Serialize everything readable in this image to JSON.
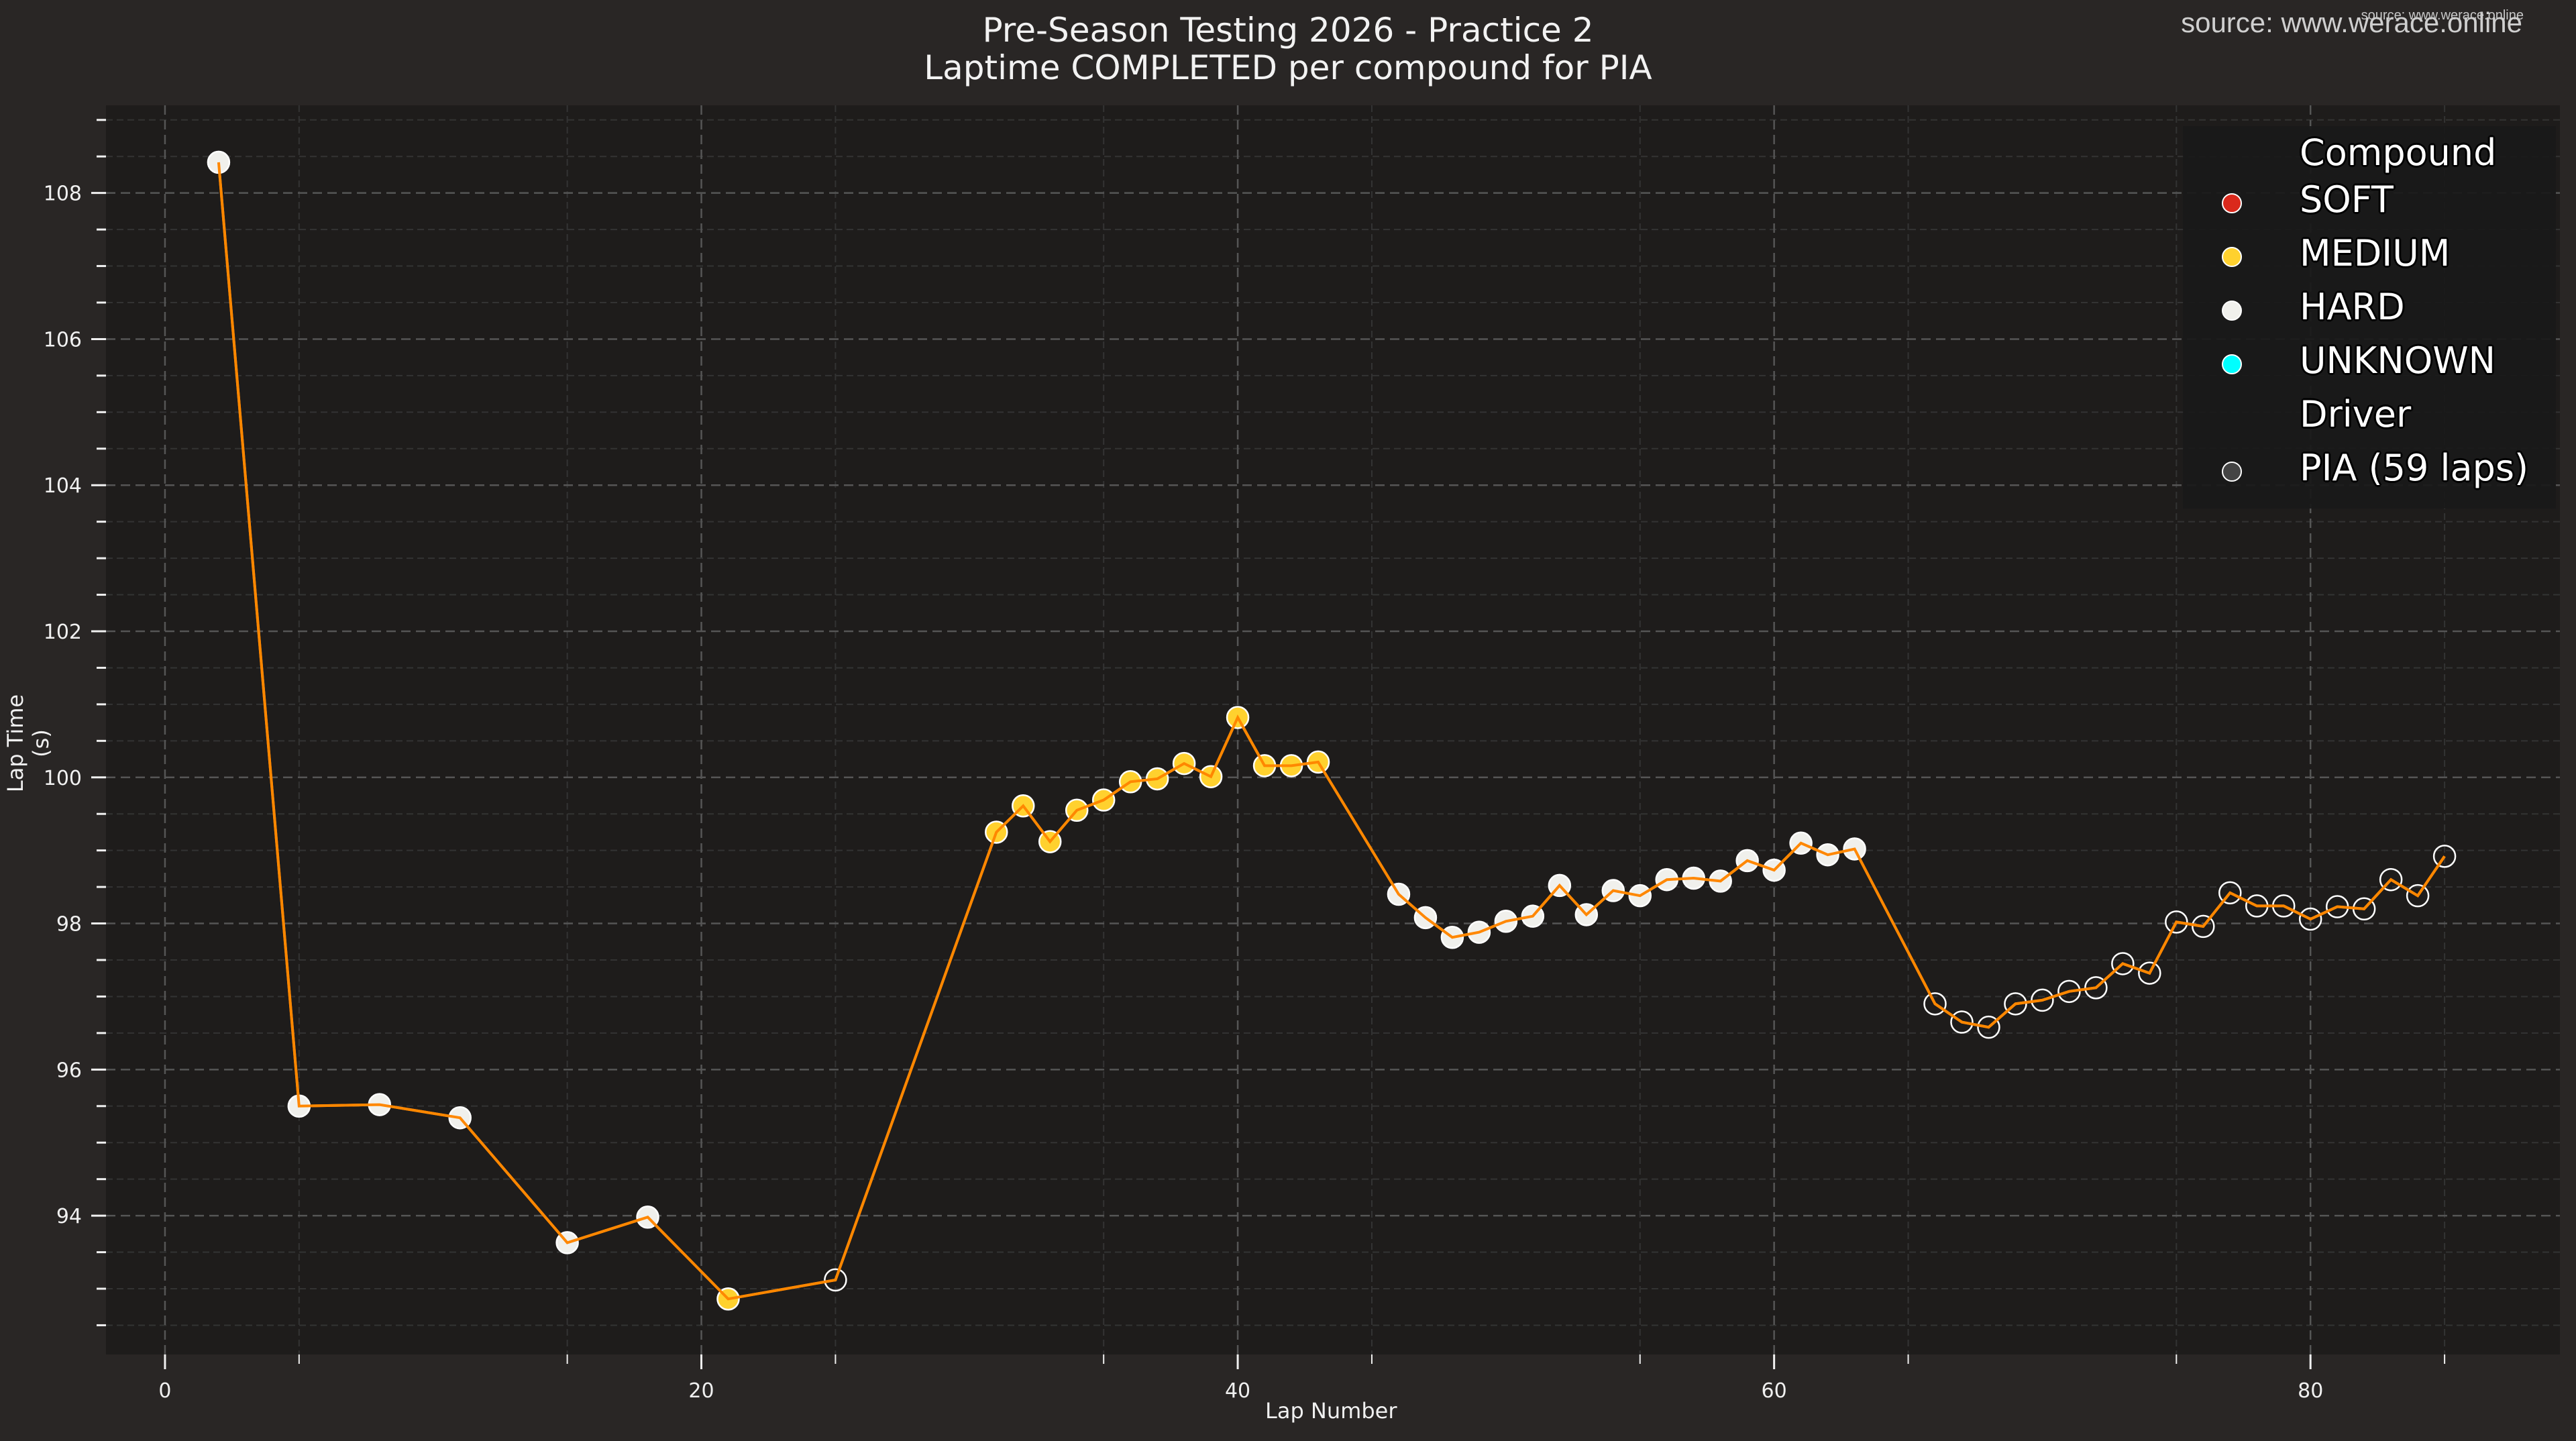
{
  "header": {
    "title_line1": "Pre-Season Testing 2026 - Practice 2",
    "title_line2": "Laptime COMPLETED per compound for PIA",
    "source_watermark": "source: www.werace.online",
    "source_watermark_small": "source: www.werace.online"
  },
  "axes": {
    "xlabel": "Lap Number",
    "ylabel": "Lap Time (s)"
  },
  "legend": {
    "compound_title": "Compound",
    "driver_title": "Driver",
    "items": [
      {
        "label": "SOFT",
        "color": "#da291c"
      },
      {
        "label": "MEDIUM",
        "color": "#ffd12e"
      },
      {
        "label": "HARD",
        "color": "#f0f0ec"
      },
      {
        "label": "UNKNOWN",
        "color": "#00ffff"
      }
    ],
    "driver_item": {
      "label": "PIA (59 laps)",
      "color": "#444444"
    }
  },
  "colors": {
    "figure_bg": "#292625",
    "plot_bg": "#1e1c1b",
    "line": "#ff8700",
    "grid_major": "#555555",
    "grid_minor": "#333333"
  },
  "chart_data": {
    "type": "line",
    "title": "Pre-Season Testing 2026 - Practice 2 / Laptime COMPLETED per compound for PIA",
    "xlabel": "Lap Number",
    "ylabel": "Lap Time (s)",
    "xlim": [
      -2.2,
      89.3
    ],
    "ylim": [
      92.1,
      109.2
    ],
    "xticks": [
      0,
      20,
      40,
      60,
      80
    ],
    "yticks": [
      94,
      96,
      98,
      100,
      102,
      104,
      106,
      108
    ],
    "grid": true,
    "legend_position": "upper right",
    "series": [
      {
        "name": "PIA (59 laps)",
        "line_color": "#ff8700",
        "points": [
          {
            "lap": 2,
            "time": 108.42,
            "compound": "HARD"
          },
          {
            "lap": 5,
            "time": 95.5,
            "compound": "HARD"
          },
          {
            "lap": 8,
            "time": 95.52,
            "compound": "HARD"
          },
          {
            "lap": 11,
            "time": 95.34,
            "compound": "HARD"
          },
          {
            "lap": 15,
            "time": 93.63,
            "compound": "HARD"
          },
          {
            "lap": 18,
            "time": 93.98,
            "compound": "HARD"
          },
          {
            "lap": 21,
            "time": 92.86,
            "compound": "MEDIUM"
          },
          {
            "lap": 25,
            "time": 93.12,
            "compound": "NONE"
          },
          {
            "lap": 31,
            "time": 99.25,
            "compound": "MEDIUM"
          },
          {
            "lap": 32,
            "time": 99.61,
            "compound": "MEDIUM"
          },
          {
            "lap": 33,
            "time": 99.12,
            "compound": "MEDIUM"
          },
          {
            "lap": 34,
            "time": 99.55,
            "compound": "MEDIUM"
          },
          {
            "lap": 35,
            "time": 99.69,
            "compound": "MEDIUM"
          },
          {
            "lap": 36,
            "time": 99.94,
            "compound": "MEDIUM"
          },
          {
            "lap": 37,
            "time": 99.98,
            "compound": "MEDIUM"
          },
          {
            "lap": 38,
            "time": 100.19,
            "compound": "MEDIUM"
          },
          {
            "lap": 39,
            "time": 100.01,
            "compound": "MEDIUM"
          },
          {
            "lap": 40,
            "time": 100.82,
            "compound": "MEDIUM"
          },
          {
            "lap": 41,
            "time": 100.16,
            "compound": "MEDIUM"
          },
          {
            "lap": 42,
            "time": 100.16,
            "compound": "MEDIUM"
          },
          {
            "lap": 43,
            "time": 100.21,
            "compound": "MEDIUM"
          },
          {
            "lap": 46,
            "time": 98.4,
            "compound": "HARD"
          },
          {
            "lap": 47,
            "time": 98.08,
            "compound": "HARD"
          },
          {
            "lap": 48,
            "time": 97.81,
            "compound": "HARD"
          },
          {
            "lap": 49,
            "time": 97.88,
            "compound": "HARD"
          },
          {
            "lap": 50,
            "time": 98.03,
            "compound": "HARD"
          },
          {
            "lap": 51,
            "time": 98.1,
            "compound": "HARD"
          },
          {
            "lap": 52,
            "time": 98.52,
            "compound": "HARD"
          },
          {
            "lap": 53,
            "time": 98.12,
            "compound": "HARD"
          },
          {
            "lap": 54,
            "time": 98.45,
            "compound": "HARD"
          },
          {
            "lap": 55,
            "time": 98.38,
            "compound": "HARD"
          },
          {
            "lap": 56,
            "time": 98.6,
            "compound": "HARD"
          },
          {
            "lap": 57,
            "time": 98.62,
            "compound": "HARD"
          },
          {
            "lap": 58,
            "time": 98.58,
            "compound": "HARD"
          },
          {
            "lap": 59,
            "time": 98.86,
            "compound": "HARD"
          },
          {
            "lap": 60,
            "time": 98.73,
            "compound": "HARD"
          },
          {
            "lap": 61,
            "time": 99.1,
            "compound": "HARD"
          },
          {
            "lap": 62,
            "time": 98.94,
            "compound": "HARD"
          },
          {
            "lap": 63,
            "time": 99.02,
            "compound": "HARD"
          },
          {
            "lap": 66,
            "time": 96.9,
            "compound": "NONE"
          },
          {
            "lap": 67,
            "time": 96.65,
            "compound": "NONE"
          },
          {
            "lap": 68,
            "time": 96.58,
            "compound": "NONE"
          },
          {
            "lap": 69,
            "time": 96.9,
            "compound": "NONE"
          },
          {
            "lap": 70,
            "time": 96.95,
            "compound": "NONE"
          },
          {
            "lap": 71,
            "time": 97.07,
            "compound": "NONE"
          },
          {
            "lap": 72,
            "time": 97.12,
            "compound": "NONE"
          },
          {
            "lap": 73,
            "time": 97.45,
            "compound": "NONE"
          },
          {
            "lap": 74,
            "time": 97.32,
            "compound": "NONE"
          },
          {
            "lap": 75,
            "time": 98.02,
            "compound": "NONE"
          },
          {
            "lap": 76,
            "time": 97.96,
            "compound": "NONE"
          },
          {
            "lap": 77,
            "time": 98.42,
            "compound": "NONE"
          },
          {
            "lap": 78,
            "time": 98.24,
            "compound": "NONE"
          },
          {
            "lap": 79,
            "time": 98.24,
            "compound": "NONE"
          },
          {
            "lap": 80,
            "time": 98.06,
            "compound": "NONE"
          },
          {
            "lap": 81,
            "time": 98.23,
            "compound": "NONE"
          },
          {
            "lap": 82,
            "time": 98.2,
            "compound": "NONE"
          },
          {
            "lap": 83,
            "time": 98.6,
            "compound": "NONE"
          },
          {
            "lap": 84,
            "time": 98.38,
            "compound": "NONE"
          },
          {
            "lap": 85,
            "time": 98.92,
            "compound": "NONE"
          }
        ]
      }
    ],
    "compound_colors": {
      "SOFT": "#da291c",
      "MEDIUM": "#ffd12e",
      "HARD": "#f0f0ec",
      "UNKNOWN": "#00ffff",
      "NONE": "none"
    }
  }
}
